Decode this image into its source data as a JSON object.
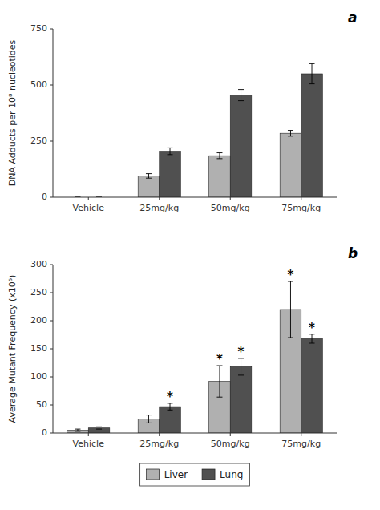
{
  "chart_data": [
    {
      "type": "bar",
      "title": "a",
      "categories": [
        "Vehicle",
        "25mg/kg",
        "50mg/kg",
        "75mg/kg"
      ],
      "series": [
        {
          "name": "Liver",
          "color": "#b0b0b0",
          "values": [
            0,
            95,
            185,
            285
          ],
          "errors": [
            0,
            10,
            13,
            13
          ]
        },
        {
          "name": "Lung",
          "color": "#505050",
          "values": [
            0,
            205,
            455,
            550
          ],
          "errors": [
            0,
            15,
            25,
            45
          ]
        }
      ],
      "y_label": "DNA Adducts per 10⁸ nucleotides",
      "ylim": [
        0,
        750
      ],
      "yticks": [
        0,
        250,
        500,
        750
      ],
      "grid": false,
      "legend": false
    },
    {
      "type": "bar",
      "title": "b",
      "categories": [
        "Vehicle",
        "25mg/kg",
        "50mg/kg",
        "75mg/kg"
      ],
      "series": [
        {
          "name": "Liver",
          "color": "#b0b0b0",
          "values": [
            5,
            25,
            92,
            220
          ],
          "errors": [
            2,
            7,
            28,
            50
          ]
        },
        {
          "name": "Lung",
          "color": "#505050",
          "values": [
            9,
            47,
            118,
            168
          ],
          "errors": [
            2,
            6,
            15,
            8
          ]
        }
      ],
      "y_label": "Average Mutant Frequency (x10⁵)",
      "ylim": [
        0,
        300
      ],
      "yticks": [
        0,
        50,
        100,
        150,
        200,
        250,
        300
      ],
      "annotations": [
        {
          "text": "*",
          "series": 0,
          "index": 2
        },
        {
          "text": "*",
          "series": 0,
          "index": 3
        },
        {
          "text": "*",
          "series": 1,
          "index": 1
        },
        {
          "text": "*",
          "series": 1,
          "index": 2
        },
        {
          "text": "*",
          "series": 1,
          "index": 3
        }
      ],
      "grid": false,
      "legend": "bottom"
    }
  ]
}
